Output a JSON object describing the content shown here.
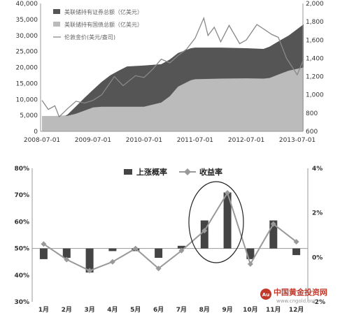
{
  "chart_data": [
    {
      "type": "area",
      "x_ticks": [
        "2008-07-01",
        "2009-07-01",
        "2010-07-01",
        "2011-07-01",
        "2012-07-01",
        "2013-07-01"
      ],
      "y_left_ticks": [
        "0",
        "5,000",
        "10,000",
        "15,000",
        "20,000",
        "25,000",
        "30,000",
        "35,000",
        "40,000"
      ],
      "y_right_ticks": [
        "600",
        "800",
        "1,000",
        "1,200",
        "1,400",
        "1,600",
        "1,800",
        "2,000"
      ],
      "ylim_left": [
        0,
        40000
      ],
      "ylim_right": [
        600,
        2000
      ],
      "legend": [
        {
          "label": "美联储持有证券总额（亿美元）",
          "kind": "area-dark"
        },
        {
          "label": "美联储持有国债总额（亿美元）",
          "kind": "area-light"
        },
        {
          "label": "伦敦金价(美元/盎司)",
          "kind": "line"
        }
      ],
      "series": [
        {
          "name": "美联储持有证券总额（亿美元）",
          "axis": "left",
          "x": [
            "2008-07-01",
            "2008-10-01",
            "2008-12-15",
            "2009-01-01",
            "2009-03-01",
            "2009-05-01",
            "2009-07-01",
            "2009-09-01",
            "2009-11-01",
            "2010-01-01",
            "2010-03-01",
            "2010-07-01",
            "2010-11-01",
            "2011-01-01",
            "2011-03-01",
            "2011-06-01",
            "2011-07-01",
            "2012-01-01",
            "2012-07-01",
            "2012-11-01",
            "2012-12-15",
            "2013-03-01",
            "2013-05-01",
            "2013-08-15"
          ],
          "values": [
            4800,
            4800,
            4900,
            5300,
            7800,
            10500,
            13000,
            15500,
            17500,
            19000,
            20300,
            20600,
            21000,
            22500,
            24500,
            26000,
            26200,
            26200,
            26000,
            25800,
            26500,
            28500,
            30000,
            33500
          ]
        },
        {
          "name": "美联储持有国债总额（亿美元）",
          "axis": "left",
          "x": [
            "2008-07-01",
            "2008-12-15",
            "2009-01-01",
            "2009-03-01",
            "2009-05-01",
            "2009-07-01",
            "2009-09-01",
            "2010-01-01",
            "2010-07-01",
            "2010-11-01",
            "2011-01-01",
            "2011-03-01",
            "2011-06-01",
            "2011-07-01",
            "2012-01-01",
            "2012-07-01",
            "2012-11-01",
            "2012-12-15",
            "2013-03-01",
            "2013-05-01",
            "2013-08-15"
          ],
          "values": [
            4800,
            4800,
            4900,
            5500,
            6500,
            7500,
            7700,
            7700,
            7700,
            9000,
            11000,
            14000,
            16000,
            16300,
            16500,
            16600,
            16500,
            16700,
            18000,
            19000,
            20000
          ]
        },
        {
          "name": "伦敦金价(美元/盎司)",
          "axis": "right",
          "x": [
            "2008-07-01",
            "2008-08-15",
            "2008-10-01",
            "2008-11-01",
            "2009-01-01",
            "2009-03-01",
            "2009-05-01",
            "2009-07-01",
            "2009-09-01",
            "2009-12-01",
            "2010-02-01",
            "2010-05-01",
            "2010-07-01",
            "2010-09-01",
            "2010-11-01",
            "2011-01-01",
            "2011-03-01",
            "2011-05-01",
            "2011-07-01",
            "2011-09-01",
            "2011-10-01",
            "2011-11-15",
            "2011-12-31",
            "2012-02-29",
            "2012-05-15",
            "2012-07-01",
            "2012-09-15",
            "2012-10-15",
            "2012-12-31",
            "2013-02-15",
            "2013-04-15",
            "2013-06-30",
            "2013-08-15"
          ],
          "values": [
            940,
            840,
            880,
            760,
            850,
            930,
            910,
            940,
            1000,
            1200,
            1100,
            1210,
            1190,
            1280,
            1390,
            1350,
            1430,
            1500,
            1620,
            1840,
            1650,
            1740,
            1580,
            1760,
            1560,
            1600,
            1770,
            1740,
            1660,
            1630,
            1400,
            1220,
            1390
          ]
        }
      ]
    },
    {
      "type": "bar",
      "categories": [
        "1月",
        "2月",
        "3月",
        "4月",
        "5月",
        "6月",
        "7月",
        "8月",
        "9月",
        "10月",
        "11月",
        "12月"
      ],
      "y_left_ticks": [
        "30%",
        "40%",
        "50%",
        "60%",
        "70%",
        "80%"
      ],
      "y_right_ticks": [
        "-2%",
        "0%",
        "2%",
        "4%"
      ],
      "ylim_left": [
        30,
        80
      ],
      "ylim_right": [
        -2,
        4
      ],
      "legend": [
        {
          "label": "上涨概率",
          "kind": "bar"
        },
        {
          "label": "收益率",
          "kind": "line"
        }
      ],
      "series": [
        {
          "name": "上涨概率",
          "axis": "left",
          "values": [
            46,
            46.5,
            41,
            49,
            49,
            46.5,
            51,
            60.5,
            71,
            46,
            60.5,
            47.5
          ]
        },
        {
          "name": "收益率",
          "axis": "right",
          "values": [
            0.6,
            -0.1,
            -0.6,
            -0.2,
            0.4,
            -0.5,
            0.3,
            1.2,
            2.9,
            -0.3,
            1.5,
            0.7
          ]
        }
      ],
      "annotation": "ellipse around 8月 and 9月"
    }
  ],
  "watermark": {
    "title": "中国黄金投资网",
    "url": "www.cngold.org",
    "accent": "#c0392b"
  },
  "colors": {
    "dark_area": "#555555",
    "light_area": "#bbbbbb",
    "line": "#888888",
    "bar": "#444444",
    "line2": "#999999"
  }
}
